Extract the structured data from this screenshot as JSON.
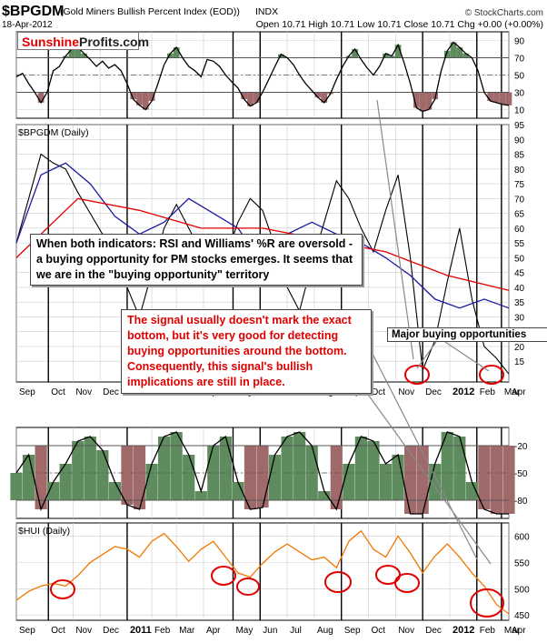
{
  "header": {
    "symbol": "$BPGDM",
    "name": "(Gold Miners Bullish Percent Index (EOD))",
    "exchange": "INDX",
    "date": "18-Apr-2012",
    "ohlc": "Open 10.71  High 10.71  Low 10.71  Close 10.71  Chg +0.00 (+0.00%)",
    "watermark": "© StockCharts.com"
  },
  "logo": {
    "part1": "Sunshine",
    "part2": "Profits.com"
  },
  "notes": {
    "indicators": "When both indicators: RSI and Williams' %R are oversold - a buying opportunity for PM stocks emerges. It seems that we are in the \"buying opportunity\" territory",
    "signal": "The signal usually doesn't mark the exact bottom, but it's very good for detecting buying opportunities around the bottom. Consequently, this signal's bullish implications are still in place.",
    "major": "Major buying opportunities"
  },
  "colors": {
    "overbought_fill": "#5e8c5e",
    "oversold_fill": "#a06a6a",
    "price_line": "#000000",
    "ma_short": "#1a1aa0",
    "ma_long": "#e00000",
    "hui_line": "#f07800",
    "circle": "#e00000"
  },
  "chart_data": [
    {
      "type": "line",
      "name": "rsi-panel",
      "yticks": [
        10,
        30,
        50,
        70,
        90
      ],
      "ylim": [
        0,
        100
      ],
      "levels": [
        30,
        70
      ],
      "x": [
        0,
        1,
        2,
        3,
        4,
        5,
        6,
        7,
        8,
        9,
        10,
        11,
        12,
        13,
        14,
        15,
        16,
        17,
        18,
        19,
        20,
        21,
        22,
        23,
        24,
        25,
        26,
        27,
        28,
        29,
        30,
        31,
        32,
        33,
        34,
        35,
        36,
        37,
        38,
        39,
        40,
        41,
        42,
        43,
        44,
        45,
        46,
        47,
        48,
        49,
        50,
        51,
        52,
        53,
        54,
        55,
        56,
        57,
        58,
        59,
        60,
        61,
        62,
        63,
        64,
        65,
        66,
        67,
        68,
        69,
        70,
        71,
        72,
        73,
        74,
        75,
        76,
        77,
        78,
        79,
        80
      ],
      "values": [
        48,
        52,
        40,
        30,
        18,
        30,
        55,
        60,
        72,
        80,
        82,
        75,
        68,
        60,
        66,
        58,
        62,
        55,
        40,
        22,
        15,
        10,
        20,
        40,
        62,
        75,
        82,
        70,
        60,
        55,
        48,
        68,
        66,
        60,
        50,
        42,
        35,
        22,
        14,
        18,
        30,
        45,
        60,
        74,
        70,
        62,
        50,
        40,
        32,
        24,
        18,
        28,
        45,
        60,
        72,
        80,
        68,
        58,
        50,
        60,
        75,
        72,
        85,
        64,
        40,
        12,
        8,
        10,
        22,
        55,
        78,
        88,
        82,
        75,
        70,
        55,
        30,
        20,
        18,
        16,
        15
      ]
    },
    {
      "type": "line",
      "name": "bpgdm-panel",
      "title": "$BPGDM (Daily)",
      "yticks": [
        15,
        20,
        25,
        30,
        35,
        40,
        45,
        50,
        55,
        60,
        65,
        70,
        75,
        80,
        85,
        90,
        95
      ],
      "ylim": [
        8,
        95
      ],
      "series": [
        {
          "name": "price",
          "x": [
            0,
            2,
            4,
            6,
            8,
            10,
            12,
            14,
            16,
            18,
            20,
            22,
            24,
            26,
            28,
            30,
            32,
            34,
            36,
            38,
            40,
            42,
            44,
            46,
            48,
            50,
            52,
            54,
            56,
            58,
            60,
            62,
            64,
            66,
            68,
            70,
            72,
            74,
            76,
            78,
            80
          ],
          "values": [
            55,
            70,
            85,
            82,
            80,
            72,
            65,
            58,
            50,
            40,
            30,
            45,
            60,
            68,
            60,
            52,
            44,
            50,
            62,
            70,
            66,
            54,
            40,
            32,
            48,
            62,
            76,
            70,
            60,
            52,
            66,
            78,
            50,
            12,
            22,
            42,
            60,
            36,
            20,
            16,
            10.71
          ]
        },
        {
          "name": "MA50",
          "x": [
            0,
            4,
            8,
            12,
            16,
            20,
            24,
            28,
            32,
            36,
            40,
            44,
            48,
            52,
            56,
            60,
            64,
            68,
            72,
            76,
            80
          ],
          "values": [
            55,
            78,
            82,
            75,
            64,
            58,
            62,
            70,
            65,
            60,
            48,
            58,
            62,
            58,
            55,
            50,
            44,
            36,
            33,
            36,
            33
          ]
        },
        {
          "name": "MA200",
          "x": [
            0,
            10,
            20,
            30,
            40,
            50,
            60,
            70,
            80
          ],
          "values": [
            50,
            70,
            66,
            60,
            60,
            56,
            52,
            44,
            39
          ]
        }
      ]
    },
    {
      "type": "line",
      "name": "williams-panel",
      "yticks": [
        -20,
        -50,
        -80
      ],
      "ylim": [
        -100,
        0
      ],
      "levels": [
        -20,
        -80
      ],
      "x": [
        0,
        2,
        4,
        6,
        8,
        10,
        12,
        14,
        16,
        18,
        20,
        22,
        24,
        26,
        28,
        30,
        32,
        34,
        36,
        38,
        40,
        42,
        44,
        46,
        48,
        50,
        52,
        54,
        56,
        58,
        60,
        62,
        64,
        66,
        68,
        70,
        72,
        74,
        76,
        78,
        80
      ],
      "values": [
        -50,
        -30,
        -90,
        -60,
        -40,
        -15,
        -10,
        -25,
        -60,
        -85,
        -90,
        -40,
        -10,
        -5,
        -30,
        -70,
        -20,
        -10,
        -60,
        -90,
        -88,
        -30,
        -10,
        -5,
        -20,
        -70,
        -90,
        -40,
        -10,
        -15,
        -40,
        -30,
        -95,
        -95,
        -40,
        -5,
        -10,
        -60,
        -90,
        -95,
        -95
      ]
    },
    {
      "type": "line",
      "name": "hui-panel",
      "title": "$HUI (Daily)",
      "yticks": [
        450,
        500,
        550,
        600
      ],
      "ylim": [
        440,
        625
      ],
      "x": [
        0,
        2,
        4,
        6,
        8,
        10,
        12,
        14,
        16,
        18,
        20,
        22,
        24,
        26,
        28,
        30,
        32,
        34,
        36,
        38,
        40,
        42,
        44,
        46,
        48,
        50,
        52,
        54,
        56,
        58,
        60,
        62,
        64,
        66,
        68,
        70,
        72,
        74,
        76,
        78,
        80
      ],
      "values": [
        478,
        495,
        505,
        510,
        505,
        525,
        550,
        565,
        580,
        575,
        560,
        590,
        605,
        580,
        552,
        575,
        590,
        560,
        530,
        522,
        548,
        570,
        585,
        570,
        555,
        560,
        540,
        590,
        610,
        575,
        560,
        600,
        568,
        530,
        562,
        585,
        560,
        530,
        505,
        470,
        452
      ]
    }
  ],
  "xaxis": {
    "labels": [
      "Sep",
      "Oct",
      "Nov",
      "Dec",
      "2011",
      "Feb",
      "Mar",
      "Apr",
      "May",
      "Jun",
      "Jul",
      "Aug",
      "Sep",
      "Oct",
      "Nov",
      "Dec",
      "2012",
      "Feb",
      "Mar",
      "Apr"
    ]
  }
}
